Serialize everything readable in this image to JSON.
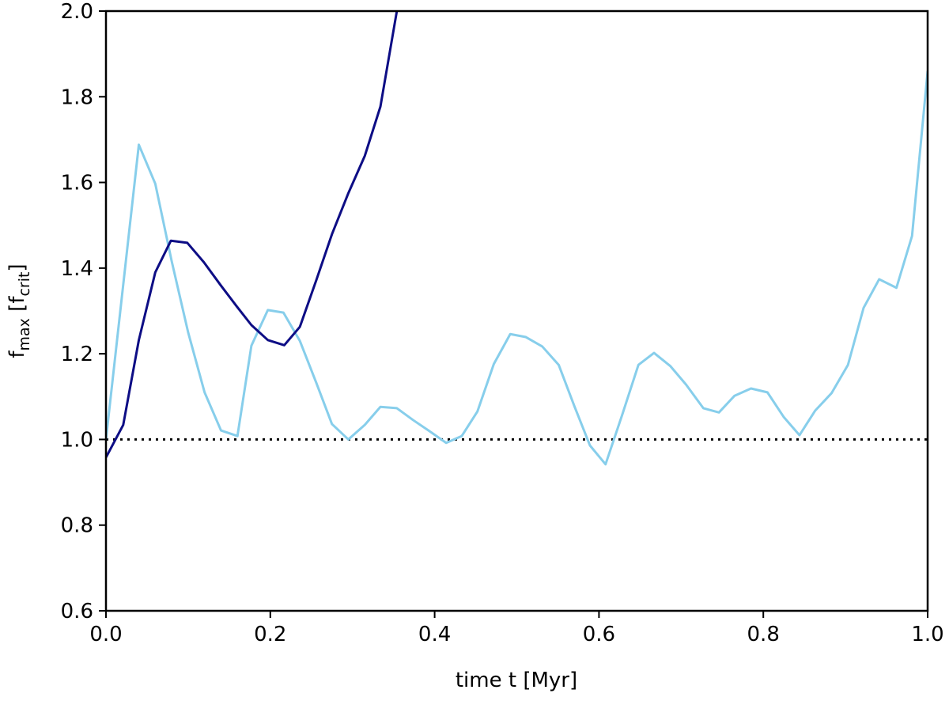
{
  "chart_data": {
    "type": "line",
    "xlabel": "time t [Myr]",
    "ylabel": [
      "f",
      "max",
      " [f",
      "crit",
      "]"
    ],
    "xlim": [
      0,
      1
    ],
    "ylim": [
      0.6,
      2.0
    ],
    "xticks": [
      {
        "value": 0,
        "label": "0.0"
      },
      0.2,
      0.4,
      0.6,
      0.8,
      {
        "value": 1,
        "label": "1.0"
      }
    ],
    "yticks": [
      0.6,
      0.8,
      {
        "value": 1,
        "label": "1.0"
      },
      1.2,
      1.4,
      1.6,
      1.8,
      {
        "value": 2,
        "label": "2.0"
      }
    ],
    "hline": {
      "value": 1.0,
      "color": "#000000",
      "style": "dotted"
    },
    "series": [
      {
        "color": "#87ceeb",
        "x": [
          0,
          0.04,
          0.06,
          0.08,
          0.1,
          0.12,
          0.14,
          0.16,
          0.177,
          0.197,
          0.216,
          0.236,
          0.256,
          0.275,
          0.295,
          0.315,
          0.334,
          0.354,
          0.374,
          0.394,
          0.414,
          0.433,
          0.452,
          0.472,
          0.492,
          0.511,
          0.531,
          0.551,
          0.57,
          0.589,
          0.608,
          0.628,
          0.648,
          0.667,
          0.687,
          0.706,
          0.727,
          0.746,
          0.765,
          0.785,
          0.805,
          0.825,
          0.844,
          0.863,
          0.883,
          0.903,
          0.922,
          0.941,
          0.962,
          0.981,
          1.0
        ],
        "values": [
          1.0,
          1.688,
          1.597,
          1.416,
          1.25,
          1.11,
          1.021,
          1.008,
          1.219,
          1.302,
          1.296,
          1.23,
          1.132,
          1.036,
          1.0,
          1.034,
          1.076,
          1.073,
          1.045,
          1.019,
          0.992,
          1.008,
          1.065,
          1.176,
          1.246,
          1.239,
          1.217,
          1.174,
          1.078,
          0.986,
          0.942,
          1.056,
          1.174,
          1.202,
          1.171,
          1.128,
          1.073,
          1.063,
          1.102,
          1.119,
          1.11,
          1.052,
          1.01,
          1.067,
          1.108,
          1.174,
          1.307,
          1.374,
          1.354,
          1.475,
          1.86
        ]
      },
      {
        "color": "#0d0d85",
        "x": [
          0,
          0.021,
          0.04,
          0.06,
          0.079,
          0.099,
          0.119,
          0.14,
          0.159,
          0.177,
          0.197,
          0.217,
          0.236,
          0.256,
          0.275,
          0.295,
          0.315,
          0.334,
          0.354
        ],
        "values": [
          0.958,
          1.034,
          1.232,
          1.39,
          1.464,
          1.459,
          1.414,
          1.359,
          1.311,
          1.267,
          1.232,
          1.22,
          1.263,
          1.372,
          1.479,
          1.575,
          1.662,
          1.777,
          2.0
        ]
      }
    ]
  }
}
